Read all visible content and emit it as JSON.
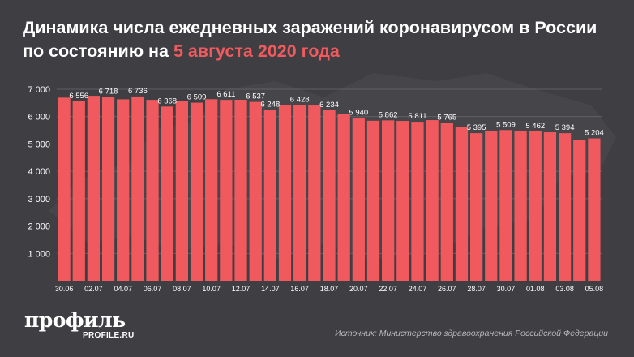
{
  "header": {
    "title_main": "Динамика числа ежедневных заражений коронавирусом в России по состоянию на",
    "title_accent": "5 августа 2020 года"
  },
  "brand": {
    "logo_text": "профиль",
    "logo_url_text": "PROFILE.RU"
  },
  "footer": {
    "source": "Источник: Министерство здравоохранения Российской Федерации"
  },
  "colors": {
    "background": "#3e3e43",
    "bar": "#f05a5e",
    "accent": "#f05a5e",
    "text": "#ffffff",
    "grid": "#6b6b70"
  },
  "chart_data": {
    "type": "bar",
    "title": "Динамика числа ежедневных заражений коронавирусом в России по состоянию на 5 августа 2020 года",
    "xlabel": "",
    "ylabel": "",
    "ylim": [
      0,
      7000
    ],
    "yticks": [
      1000,
      2000,
      3000,
      4000,
      5000,
      6000,
      7000
    ],
    "ytick_labels": [
      "1 000",
      "2 000",
      "3 000",
      "4 000",
      "5 000",
      "6 000",
      "7 000"
    ],
    "grid": true,
    "categories": [
      "30.06",
      "01.07",
      "02.07",
      "03.07",
      "04.07",
      "05.07",
      "06.07",
      "07.07",
      "08.07",
      "09.07",
      "10.07",
      "11.07",
      "12.07",
      "13.07",
      "14.07",
      "15.07",
      "16.07",
      "17.07",
      "18.07",
      "19.07",
      "20.07",
      "21.07",
      "22.07",
      "23.07",
      "24.07",
      "25.07",
      "26.07",
      "27.07",
      "28.07",
      "29.07",
      "30.07",
      "31.07",
      "01.08",
      "02.08",
      "03.08",
      "04.08",
      "05.08"
    ],
    "x_tick_labels": [
      "30.06",
      "02.07",
      "04.07",
      "06.07",
      "08.07",
      "10.07",
      "12.07",
      "14.07",
      "16.07",
      "18.07",
      "20.07",
      "22.07",
      "24.07",
      "26.07",
      "28.07",
      "30.07",
      "01.08",
      "03.08",
      "05.08"
    ],
    "values": [
      6693,
      6556,
      6760,
      6718,
      6632,
      6736,
      6611,
      6368,
      6562,
      6509,
      6635,
      6611,
      6615,
      6537,
      6248,
      6422,
      6428,
      6406,
      6234,
      6109,
      5940,
      5848,
      5862,
      5842,
      5811,
      5871,
      5765,
      5635,
      5395,
      5475,
      5509,
      5482,
      5462,
      5427,
      5394,
      5159,
      5204
    ],
    "data_labels": [
      {
        "i": 1,
        "text": "6 556"
      },
      {
        "i": 3,
        "text": "6 718"
      },
      {
        "i": 5,
        "text": "6 736"
      },
      {
        "i": 7,
        "text": "6 368"
      },
      {
        "i": 9,
        "text": "6 509"
      },
      {
        "i": 11,
        "text": "6 611"
      },
      {
        "i": 13,
        "text": "6 537"
      },
      {
        "i": 14,
        "text": "6 248"
      },
      {
        "i": 16,
        "text": "6 428"
      },
      {
        "i": 18,
        "text": "6 234"
      },
      {
        "i": 20,
        "text": "5 940"
      },
      {
        "i": 22,
        "text": "5 862"
      },
      {
        "i": 24,
        "text": "5 811"
      },
      {
        "i": 26,
        "text": "5 765"
      },
      {
        "i": 28,
        "text": "5 395"
      },
      {
        "i": 30,
        "text": "5 509"
      },
      {
        "i": 32,
        "text": "5 462"
      },
      {
        "i": 34,
        "text": "5 394"
      },
      {
        "i": 36,
        "text": "5 204"
      }
    ]
  }
}
